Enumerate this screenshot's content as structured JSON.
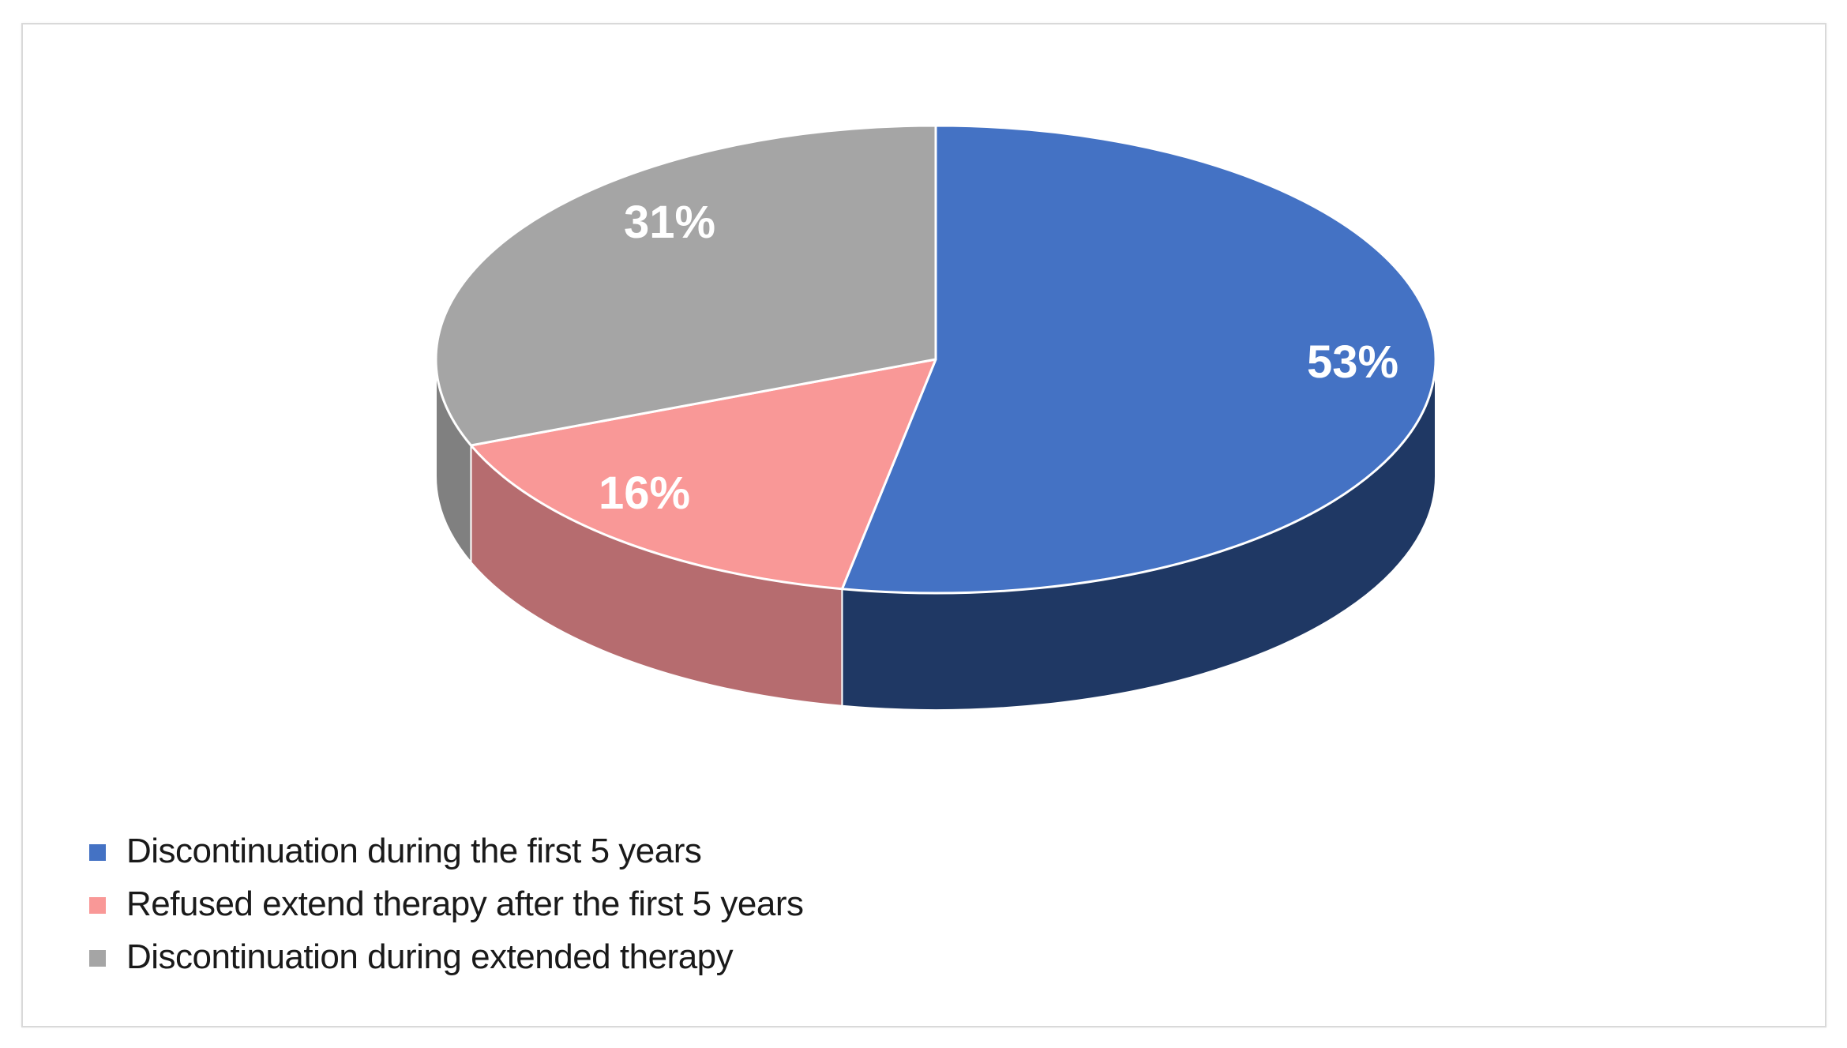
{
  "chart_data": {
    "type": "pie",
    "style": "3d",
    "direction": "clockwise",
    "start_angle_deg": 0,
    "legend_position": "bottom-left",
    "label_color": "#ffffff",
    "frame_border_color": "#d9d9d9",
    "slices": [
      {
        "label": "Discontinuation during the first 5 years",
        "value": 53,
        "display": "53%",
        "color": "#4472c4",
        "side_color": "#1f3864"
      },
      {
        "label": "Refused extend therapy after the first 5 years",
        "value": 16,
        "display": "16%",
        "color": "#f99897",
        "side_color": "#b66c6f"
      },
      {
        "label": "Discontinuation during extended therapy",
        "value": 31,
        "display": "31%",
        "color": "#a5a5a5",
        "side_color": "#808080"
      }
    ]
  }
}
